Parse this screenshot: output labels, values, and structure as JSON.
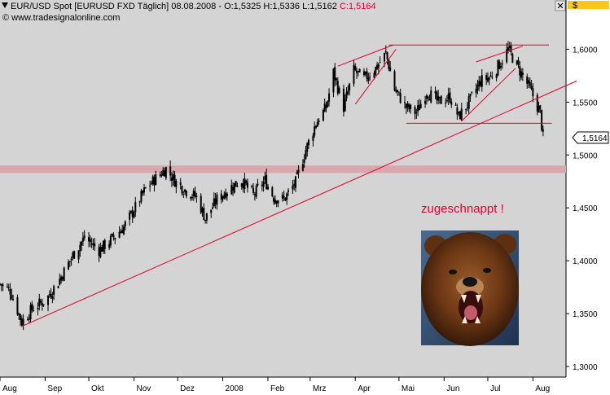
{
  "header": {
    "symbol_line_prefix": "EUR/USD Spot [EURUSD FXD  Täglich] 08.08.2008 - O:1,5325 H:1,5336 L:1,5162 ",
    "close_text": "C:1,5164",
    "copyright": "© www.tradesignalonline.com",
    "currency_label": "$",
    "close_color": "#e4002b"
  },
  "annotation": {
    "text": "zugeschnappt !",
    "color": "#e4002b"
  },
  "image": {
    "subject": "roaring-bear-photo"
  },
  "chart_data": {
    "type": "candlestick",
    "title": "EUR/USD Spot [EURUSD FXD  Täglich]",
    "xlabel": "",
    "ylabel": "",
    "ylim": [
      1.29,
      1.645
    ],
    "y_ticks": [
      "1,6000",
      "1,5500",
      "1,5000",
      "1,4500",
      "1,4000",
      "1,3500",
      "1,3000"
    ],
    "y_tick_values": [
      1.6,
      1.55,
      1.5,
      1.45,
      1.4,
      1.35,
      1.3
    ],
    "x_range": [
      "2007-08-01",
      "2008-08-31"
    ],
    "x_ticks": [
      {
        "label": "Aug",
        "date": "2007-08-01"
      },
      {
        "label": "Sep",
        "date": "2007-09-01"
      },
      {
        "label": "Okt",
        "date": "2007-10-01"
      },
      {
        "label": "Nov",
        "date": "2007-11-01"
      },
      {
        "label": "Dez",
        "date": "2007-12-01"
      },
      {
        "label": "2008",
        "date": "2008-01-01"
      },
      {
        "label": "Feb",
        "date": "2008-02-01"
      },
      {
        "label": "Mrz",
        "date": "2008-03-01"
      },
      {
        "label": "Apr",
        "date": "2008-04-01"
      },
      {
        "label": "Mai",
        "date": "2008-05-01"
      },
      {
        "label": "Jun",
        "date": "2008-06-01"
      },
      {
        "label": "Jul",
        "date": "2008-07-01"
      },
      {
        "label": "Aug",
        "date": "2008-08-01"
      }
    ],
    "last_price_label": "1,5164",
    "last_price": 1.5164,
    "price_path": [
      [
        "2007-08-01",
        1.378
      ],
      [
        "2007-08-08",
        1.372
      ],
      [
        "2007-08-16",
        1.342
      ],
      [
        "2007-08-24",
        1.356
      ],
      [
        "2007-09-01",
        1.362
      ],
      [
        "2007-09-10",
        1.38
      ],
      [
        "2007-09-20",
        1.405
      ],
      [
        "2007-09-28",
        1.422
      ],
      [
        "2007-10-08",
        1.41
      ],
      [
        "2007-10-15",
        1.418
      ],
      [
        "2007-10-25",
        1.432
      ],
      [
        "2007-11-01",
        1.448
      ],
      [
        "2007-11-09",
        1.468
      ],
      [
        "2007-11-16",
        1.478
      ],
      [
        "2007-11-23",
        1.487
      ],
      [
        "2007-11-30",
        1.474
      ],
      [
        "2007-12-07",
        1.466
      ],
      [
        "2007-12-14",
        1.46
      ],
      [
        "2007-12-20",
        1.44
      ],
      [
        "2007-12-28",
        1.458
      ],
      [
        "2008-01-07",
        1.47
      ],
      [
        "2008-01-14",
        1.476
      ],
      [
        "2008-01-22",
        1.462
      ],
      [
        "2008-01-30",
        1.476
      ],
      [
        "2008-02-05",
        1.46
      ],
      [
        "2008-02-12",
        1.458
      ],
      [
        "2008-02-20",
        1.474
      ],
      [
        "2008-02-27",
        1.505
      ],
      [
        "2008-03-05",
        1.53
      ],
      [
        "2008-03-12",
        1.545
      ],
      [
        "2008-03-17",
        1.578
      ],
      [
        "2008-03-24",
        1.545
      ],
      [
        "2008-03-31",
        1.58
      ],
      [
        "2008-04-07",
        1.572
      ],
      [
        "2008-04-15",
        1.582
      ],
      [
        "2008-04-22",
        1.596
      ],
      [
        "2008-04-28",
        1.562
      ],
      [
        "2008-05-06",
        1.545
      ],
      [
        "2008-05-13",
        1.54
      ],
      [
        "2008-05-20",
        1.56
      ],
      [
        "2008-05-28",
        1.55
      ],
      [
        "2008-06-05",
        1.555
      ],
      [
        "2008-06-11",
        1.536
      ],
      [
        "2008-06-19",
        1.552
      ],
      [
        "2008-06-26",
        1.57
      ],
      [
        "2008-07-03",
        1.574
      ],
      [
        "2008-07-11",
        1.59
      ],
      [
        "2008-07-15",
        1.6
      ],
      [
        "2008-07-22",
        1.582
      ],
      [
        "2008-07-29",
        1.565
      ],
      [
        "2008-08-01",
        1.556
      ],
      [
        "2008-08-06",
        1.54
      ],
      [
        "2008-08-08",
        1.5164
      ]
    ],
    "trendlines": [
      {
        "from": [
          "2007-08-16",
          1.338
        ],
        "to": [
          "2008-08-31",
          1.57
        ]
      },
      {
        "from": [
          "2008-03-20",
          1.584
        ],
        "to": [
          "2008-04-27",
          1.604
        ]
      },
      {
        "from": [
          "2008-04-01",
          1.548
        ],
        "to": [
          "2008-04-29",
          1.6
        ]
      },
      {
        "from": [
          "2008-04-24",
          1.604
        ],
        "to": [
          "2008-08-12",
          1.604
        ]
      },
      {
        "from": [
          "2008-05-06",
          1.53
        ],
        "to": [
          "2008-08-14",
          1.53
        ]
      },
      {
        "from": [
          "2008-06-13",
          1.532
        ],
        "to": [
          "2008-07-20",
          1.582
        ]
      },
      {
        "from": [
          "2008-06-23",
          1.588
        ],
        "to": [
          "2008-07-25",
          1.603
        ]
      }
    ],
    "resistance_zone": {
      "from": 1.483,
      "to": 1.49,
      "color": "#d9a7ae"
    },
    "line_color": "#e4002b",
    "candle_color": "#000000",
    "grid": false
  }
}
